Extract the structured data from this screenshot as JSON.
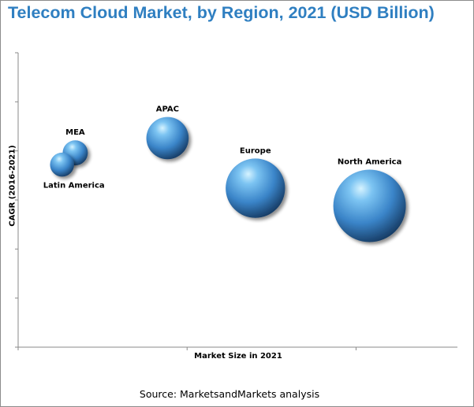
{
  "chart_data": {
    "type": "bubble",
    "title": "Telecom Cloud Market, by Region, 2021 (USD Billion)",
    "xlabel": "Market Size in 2021",
    "ylabel": "CAGR (2016-2021)",
    "source": "Source: MarketsandMarkets analysis",
    "xlim": [
      0,
      100
    ],
    "ylim": [
      0,
      100
    ],
    "grid": false,
    "points": [
      {
        "name": "North America",
        "x": 80,
        "y": 48,
        "size": 100,
        "color": "#3d85c6"
      },
      {
        "name": "Europe",
        "x": 54,
        "y": 54,
        "size": 67,
        "color": "#3d85c6"
      },
      {
        "name": "APAC",
        "x": 34,
        "y": 71,
        "size": 34,
        "color": "#3d85c6"
      },
      {
        "name": "MEA",
        "x": 13,
        "y": 66,
        "size": 12,
        "color": "#3d85c6"
      },
      {
        "name": "Latin America",
        "x": 10,
        "y": 62,
        "size": 11,
        "color": "#3d85c6"
      }
    ]
  }
}
